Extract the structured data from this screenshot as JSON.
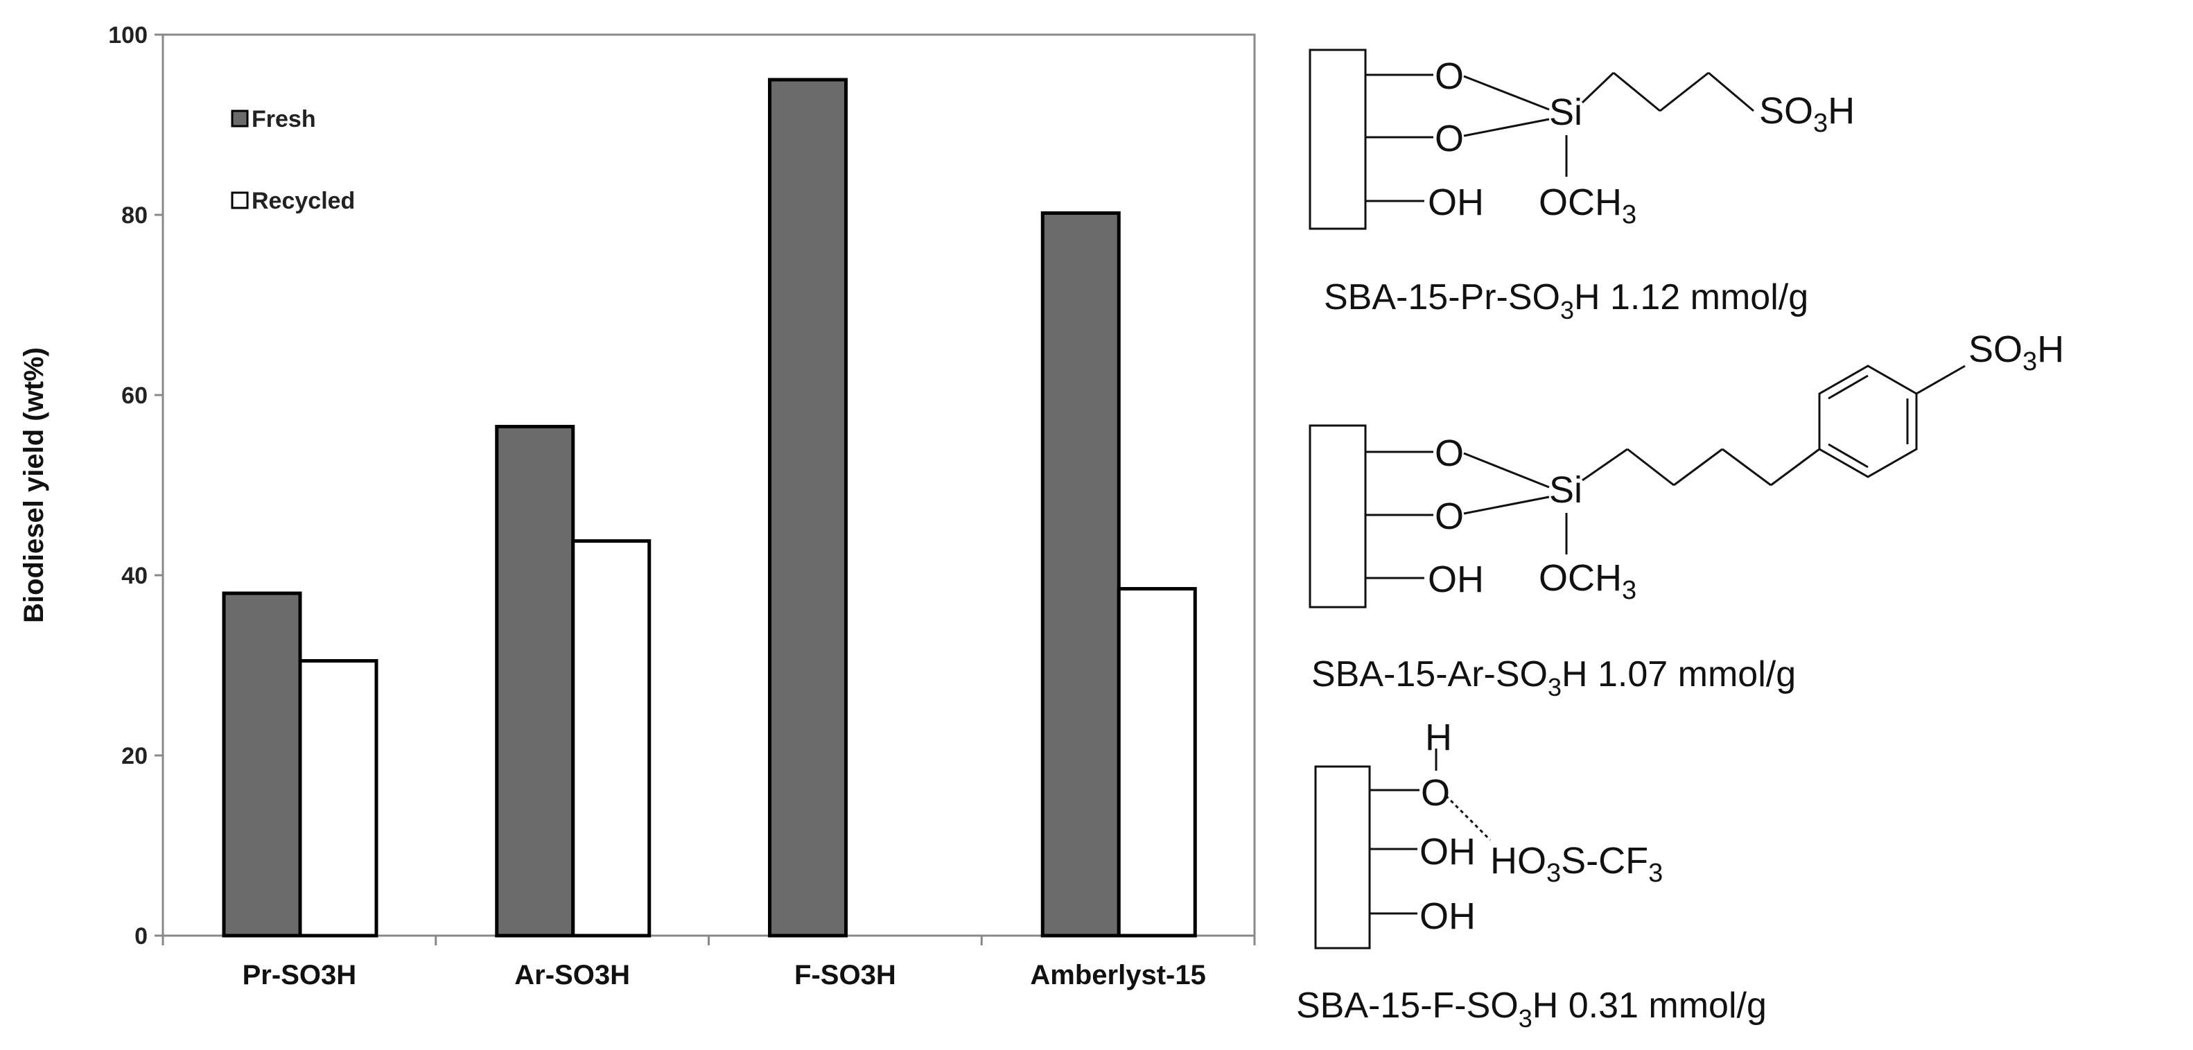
{
  "chart_data": {
    "type": "bar",
    "categories": [
      "Pr-SO3H",
      "Ar-SO3H",
      "F-SO3H",
      "Amberlyst-15"
    ],
    "series": [
      {
        "name": "Fresh",
        "values": [
          38,
          56.5,
          95,
          80.2
        ],
        "color": "#6b6b6b"
      },
      {
        "name": "Recycled",
        "values": [
          30.5,
          43.8,
          null,
          38.5
        ],
        "color": "#ffffff"
      }
    ],
    "title": "",
    "xlabel": "",
    "ylabel": "Biodiesel yield (wt%)",
    "ylim": [
      0,
      100
    ],
    "yticks": [
      0,
      20,
      40,
      60,
      80,
      100
    ],
    "grid": false,
    "legend_position": "top-left"
  },
  "structures": {
    "atoms": {
      "o": "O",
      "si": "Si",
      "oh": "OH",
      "och3_main": "OCH",
      "so3h_main": "SO",
      "h": "H",
      "ho3s_main": "HO",
      "ho3s_tail": "S-CF",
      "sub3": "3"
    },
    "pr_caption": {
      "pre": "SBA-15-Pr-SO",
      "sub": "3",
      "post": "H 1.12 mmol/g"
    },
    "ar_caption": {
      "pre": "SBA-15-Ar-SO",
      "sub": "3",
      "post": "H 1.07 mmol/g"
    },
    "f_caption": {
      "pre": "SBA-15-F-SO",
      "sub": "3",
      "post": "H 0.31 mmol/g"
    }
  }
}
